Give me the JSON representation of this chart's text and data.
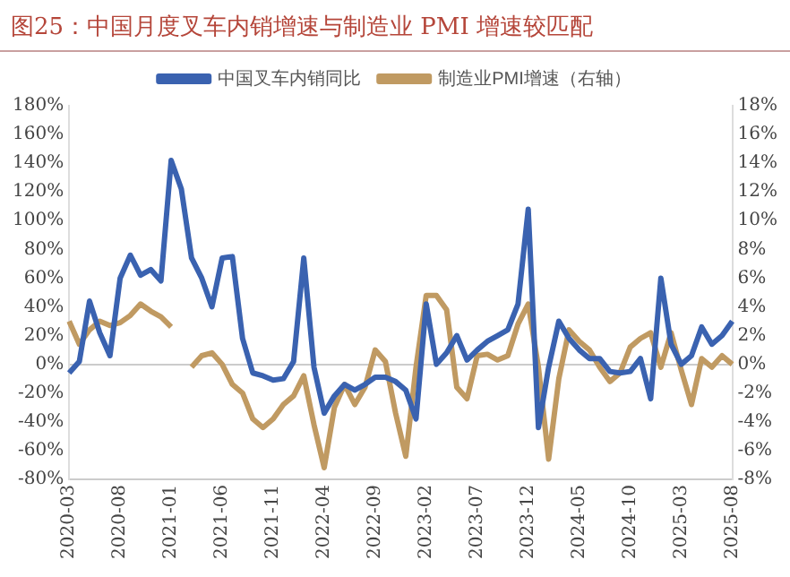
{
  "chart_data": {
    "type": "line",
    "title": "图25：中国月度叉车内销增速与制造业 PMI 增速较匹配",
    "categories": [
      "2020-03",
      null,
      null,
      null,
      null,
      "2020-08",
      null,
      null,
      null,
      null,
      "2021-01",
      null,
      null,
      null,
      null,
      "2021-06",
      null,
      null,
      null,
      null,
      "2021-11",
      null,
      null,
      null,
      null,
      "2022-04",
      null,
      null,
      null,
      null,
      "2022-09",
      null,
      null,
      null,
      null,
      "2023-02",
      null,
      null,
      null,
      null,
      "2023-07",
      null,
      null,
      null,
      null,
      "2023-12",
      null,
      null,
      null,
      null,
      "2024-05",
      null,
      null,
      null,
      null,
      "2024-10",
      null,
      null,
      null,
      null,
      "2025-03",
      null,
      null,
      null,
      null,
      "2025-08"
    ],
    "series": [
      {
        "name": "中国叉车内销同比",
        "color": "#3a62b0",
        "values": [
          -6,
          2,
          44,
          22,
          6,
          60,
          76,
          62,
          66,
          58,
          142,
          122,
          74,
          60,
          40,
          74,
          75,
          18,
          -6,
          -8,
          -11,
          -10,
          2,
          74,
          -2,
          -34,
          -22,
          -14,
          -18,
          -14,
          -9,
          -9,
          -12,
          -18,
          -38,
          42,
          0,
          8,
          20,
          3,
          10,
          16,
          20,
          24,
          42,
          108,
          -44,
          -2,
          30,
          18,
          10,
          4,
          4,
          -5,
          -6,
          -5,
          4,
          -24,
          60,
          14,
          0,
          6,
          26,
          14,
          20,
          30
        ]
      },
      {
        "name": "制造业PMI增速（右轴）",
        "color": "#c09a62",
        "axis": "y2",
        "values": [
          3.0,
          1.4,
          2.4,
          3.0,
          2.7,
          2.9,
          3.4,
          4.2,
          3.7,
          3.3,
          2.6,
          null,
          -0.2,
          0.6,
          0.8,
          0,
          -1.4,
          -2,
          -3.8,
          -4.4,
          -3.8,
          -2.8,
          -2.2,
          -0.8,
          -4.2,
          -7.2,
          -3,
          -1.4,
          -2.8,
          -1.6,
          1.0,
          0.2,
          -3.4,
          -6.4,
          -0.2,
          4.8,
          4.8,
          3.8,
          -1.6,
          -2.4,
          0.6,
          0.7,
          0.3,
          0.6,
          2.8,
          4.2,
          -0.2,
          -6.6,
          -1,
          2.4,
          1.6,
          1.0,
          -0.2,
          -1.2,
          -0.6,
          1.2,
          1.8,
          2.2,
          -0.2,
          2.2,
          -0.4,
          -2.8,
          0.4,
          -0.2,
          0.6,
          0
        ]
      }
    ],
    "ylim": [
      -80,
      180
    ],
    "yticks": [
      {
        "value": -80,
        "label": "-80%"
      },
      {
        "value": -60,
        "label": "-60%"
      },
      {
        "value": -40,
        "label": "-40%"
      },
      {
        "value": -20,
        "label": "-20%"
      },
      {
        "value": 0,
        "label": "0%"
      },
      {
        "value": 20,
        "label": "20%"
      },
      {
        "value": 40,
        "label": "40%"
      },
      {
        "value": 60,
        "label": "60%"
      },
      {
        "value": 80,
        "label": "80%"
      },
      {
        "value": 100,
        "label": "100%"
      },
      {
        "value": 120,
        "label": "120%"
      },
      {
        "value": 140,
        "label": "140%"
      },
      {
        "value": 160,
        "label": "160%"
      },
      {
        "value": 180,
        "label": "180%"
      }
    ],
    "y2lim": [
      -8,
      18
    ],
    "y2ticks": [
      {
        "value": -8,
        "label": "-8%"
      },
      {
        "value": -6,
        "label": "-6%"
      },
      {
        "value": -4,
        "label": "-4%"
      },
      {
        "value": -2,
        "label": "-2%"
      },
      {
        "value": 0,
        "label": "0%"
      },
      {
        "value": 2,
        "label": "2%"
      },
      {
        "value": 4,
        "label": "4%"
      },
      {
        "value": 6,
        "label": "6%"
      },
      {
        "value": 8,
        "label": "8%"
      },
      {
        "value": 10,
        "label": "10%"
      },
      {
        "value": 12,
        "label": "12%"
      },
      {
        "value": 14,
        "label": "14%"
      },
      {
        "value": 16,
        "label": "16%"
      },
      {
        "value": 18,
        "label": "18%"
      }
    ],
    "legend": "top",
    "marker": "none",
    "line_style": "solid"
  }
}
